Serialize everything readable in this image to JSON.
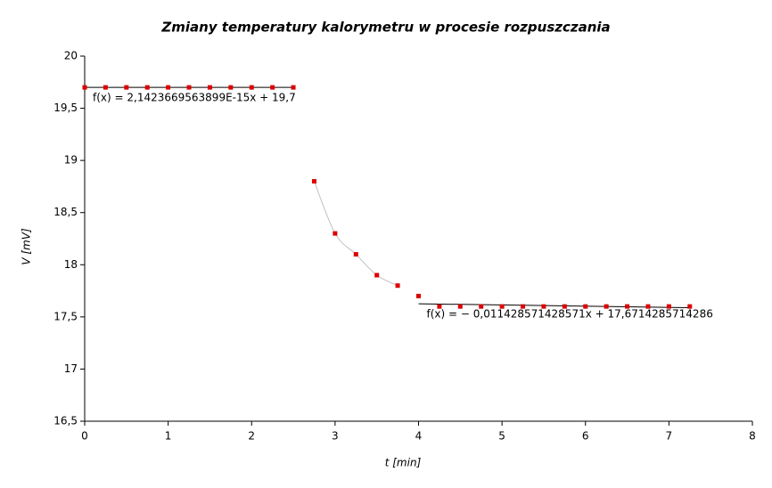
{
  "chart_data": {
    "type": "scatter",
    "title": "Zmiany temperatury kalorymetru w procesie rozpuszczania",
    "x_label": "t [min]",
    "y_label": "V [mV]",
    "xlim": [
      0,
      8
    ],
    "xticks": [
      0,
      1,
      2,
      3,
      4,
      5,
      6,
      7,
      8
    ],
    "ylim": [
      16.5,
      20
    ],
    "yticks": [
      {
        "value": 16.5,
        "label": "16,5"
      },
      17,
      {
        "value": 17.5,
        "label": "17,5"
      },
      18,
      {
        "value": 18.5,
        "label": "18,5"
      },
      19,
      {
        "value": 19.5,
        "label": "19,5"
      },
      20
    ],
    "grid": false,
    "series": [
      {
        "color": "#dd0000",
        "x": [
          0,
          0.25,
          0.5,
          0.75,
          1,
          1.25,
          1.5,
          1.75,
          2,
          2.25,
          2.5
        ],
        "values": [
          19.7,
          19.7,
          19.7,
          19.7,
          19.7,
          19.7,
          19.7,
          19.7,
          19.7,
          19.7,
          19.7
        ],
        "trendline": {
          "label": "f(x) = 2,1423669563899E-15x + 19,7",
          "slope": 2.1423669563899e-15,
          "intercept": 19.7,
          "color": "#000000"
        }
      },
      {
        "color": "#dd0000",
        "x": [
          2.75,
          3,
          3.25,
          3.5,
          3.75
        ],
        "values": [
          18.8,
          18.3,
          18.1,
          17.9,
          17.8
        ],
        "smooth_line": true,
        "line_color": "#c0c0c0"
      },
      {
        "color": "#dd0000",
        "x": [
          4,
          4.25,
          4.5,
          4.75,
          5,
          5.25,
          5.5,
          5.75,
          6,
          6.25,
          6.5,
          6.75,
          7,
          7.25
        ],
        "values": [
          17.7,
          17.6,
          17.6,
          17.6,
          17.6,
          17.6,
          17.6,
          17.6,
          17.6,
          17.6,
          17.6,
          17.6,
          17.6,
          17.6
        ],
        "trendline": {
          "label": "f(x) = − 0,011428571428571x + 17,6714285714286",
          "slope": -0.011428571428571,
          "intercept": 17.6714285714286,
          "color": "#000000"
        }
      }
    ]
  }
}
